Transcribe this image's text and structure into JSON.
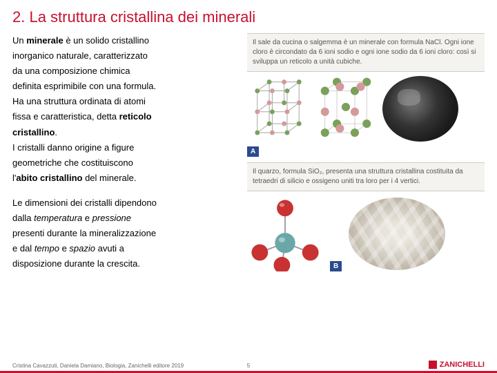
{
  "title": "2. La struttura cristallina dei minerali",
  "para1_lines": [
    "Un <strong>minerale</strong> è un solido cristallino",
    "inorganico naturale, caratterizzato",
    "da una composizione chimica",
    "definita esprimibile con una formula.",
    "Ha una struttura ordinata di atomi",
    "fissa e caratteristica, detta <strong>reticolo</strong>",
    "<strong>cristallino</strong>.",
    "I cristalli danno origine a figure",
    "geometriche che costituiscono",
    "l'<strong>abito cristallino</strong> del minerale."
  ],
  "para2_lines": [
    "Le dimensioni dei cristalli dipendono",
    "dalla <em>temperatura</em> e <em>pressione</em>",
    "presenti durante la mineralizzazione",
    "e dal <em>tempo</em> e <em>spazio</em> avuti a",
    "disposizione durante la crescita."
  ],
  "caption_a": "Il sale da cucina o salgemma è un minerale con formula NaCl. Ogni ione cloro è circondato da 6 ioni sodio e ogni ione sodio da 6 ioni cloro: così si sviluppa un reticolo a unità cubiche.",
  "caption_b": "Il quarzo, formula SiO₂, presenta una struttura cristallina costituita da tetraedri di silicio e ossigeno uniti tra loro per i 4 vertici.",
  "label_a": "A",
  "label_b": "B",
  "footer_left": "Cristina Cavazzuti, Daniela Damiano, Biologia, Zanichelli editore 2019",
  "footer_center": "5",
  "logo_text": "ZANICHELLI",
  "colors": {
    "accent": "#c8102e",
    "badge": "#2a4b8d",
    "atom_green": "#7ba05b",
    "atom_pink": "#d49a9a",
    "atom_red": "#c83232",
    "atom_teal": "#5a9a9a",
    "bond": "#999"
  }
}
